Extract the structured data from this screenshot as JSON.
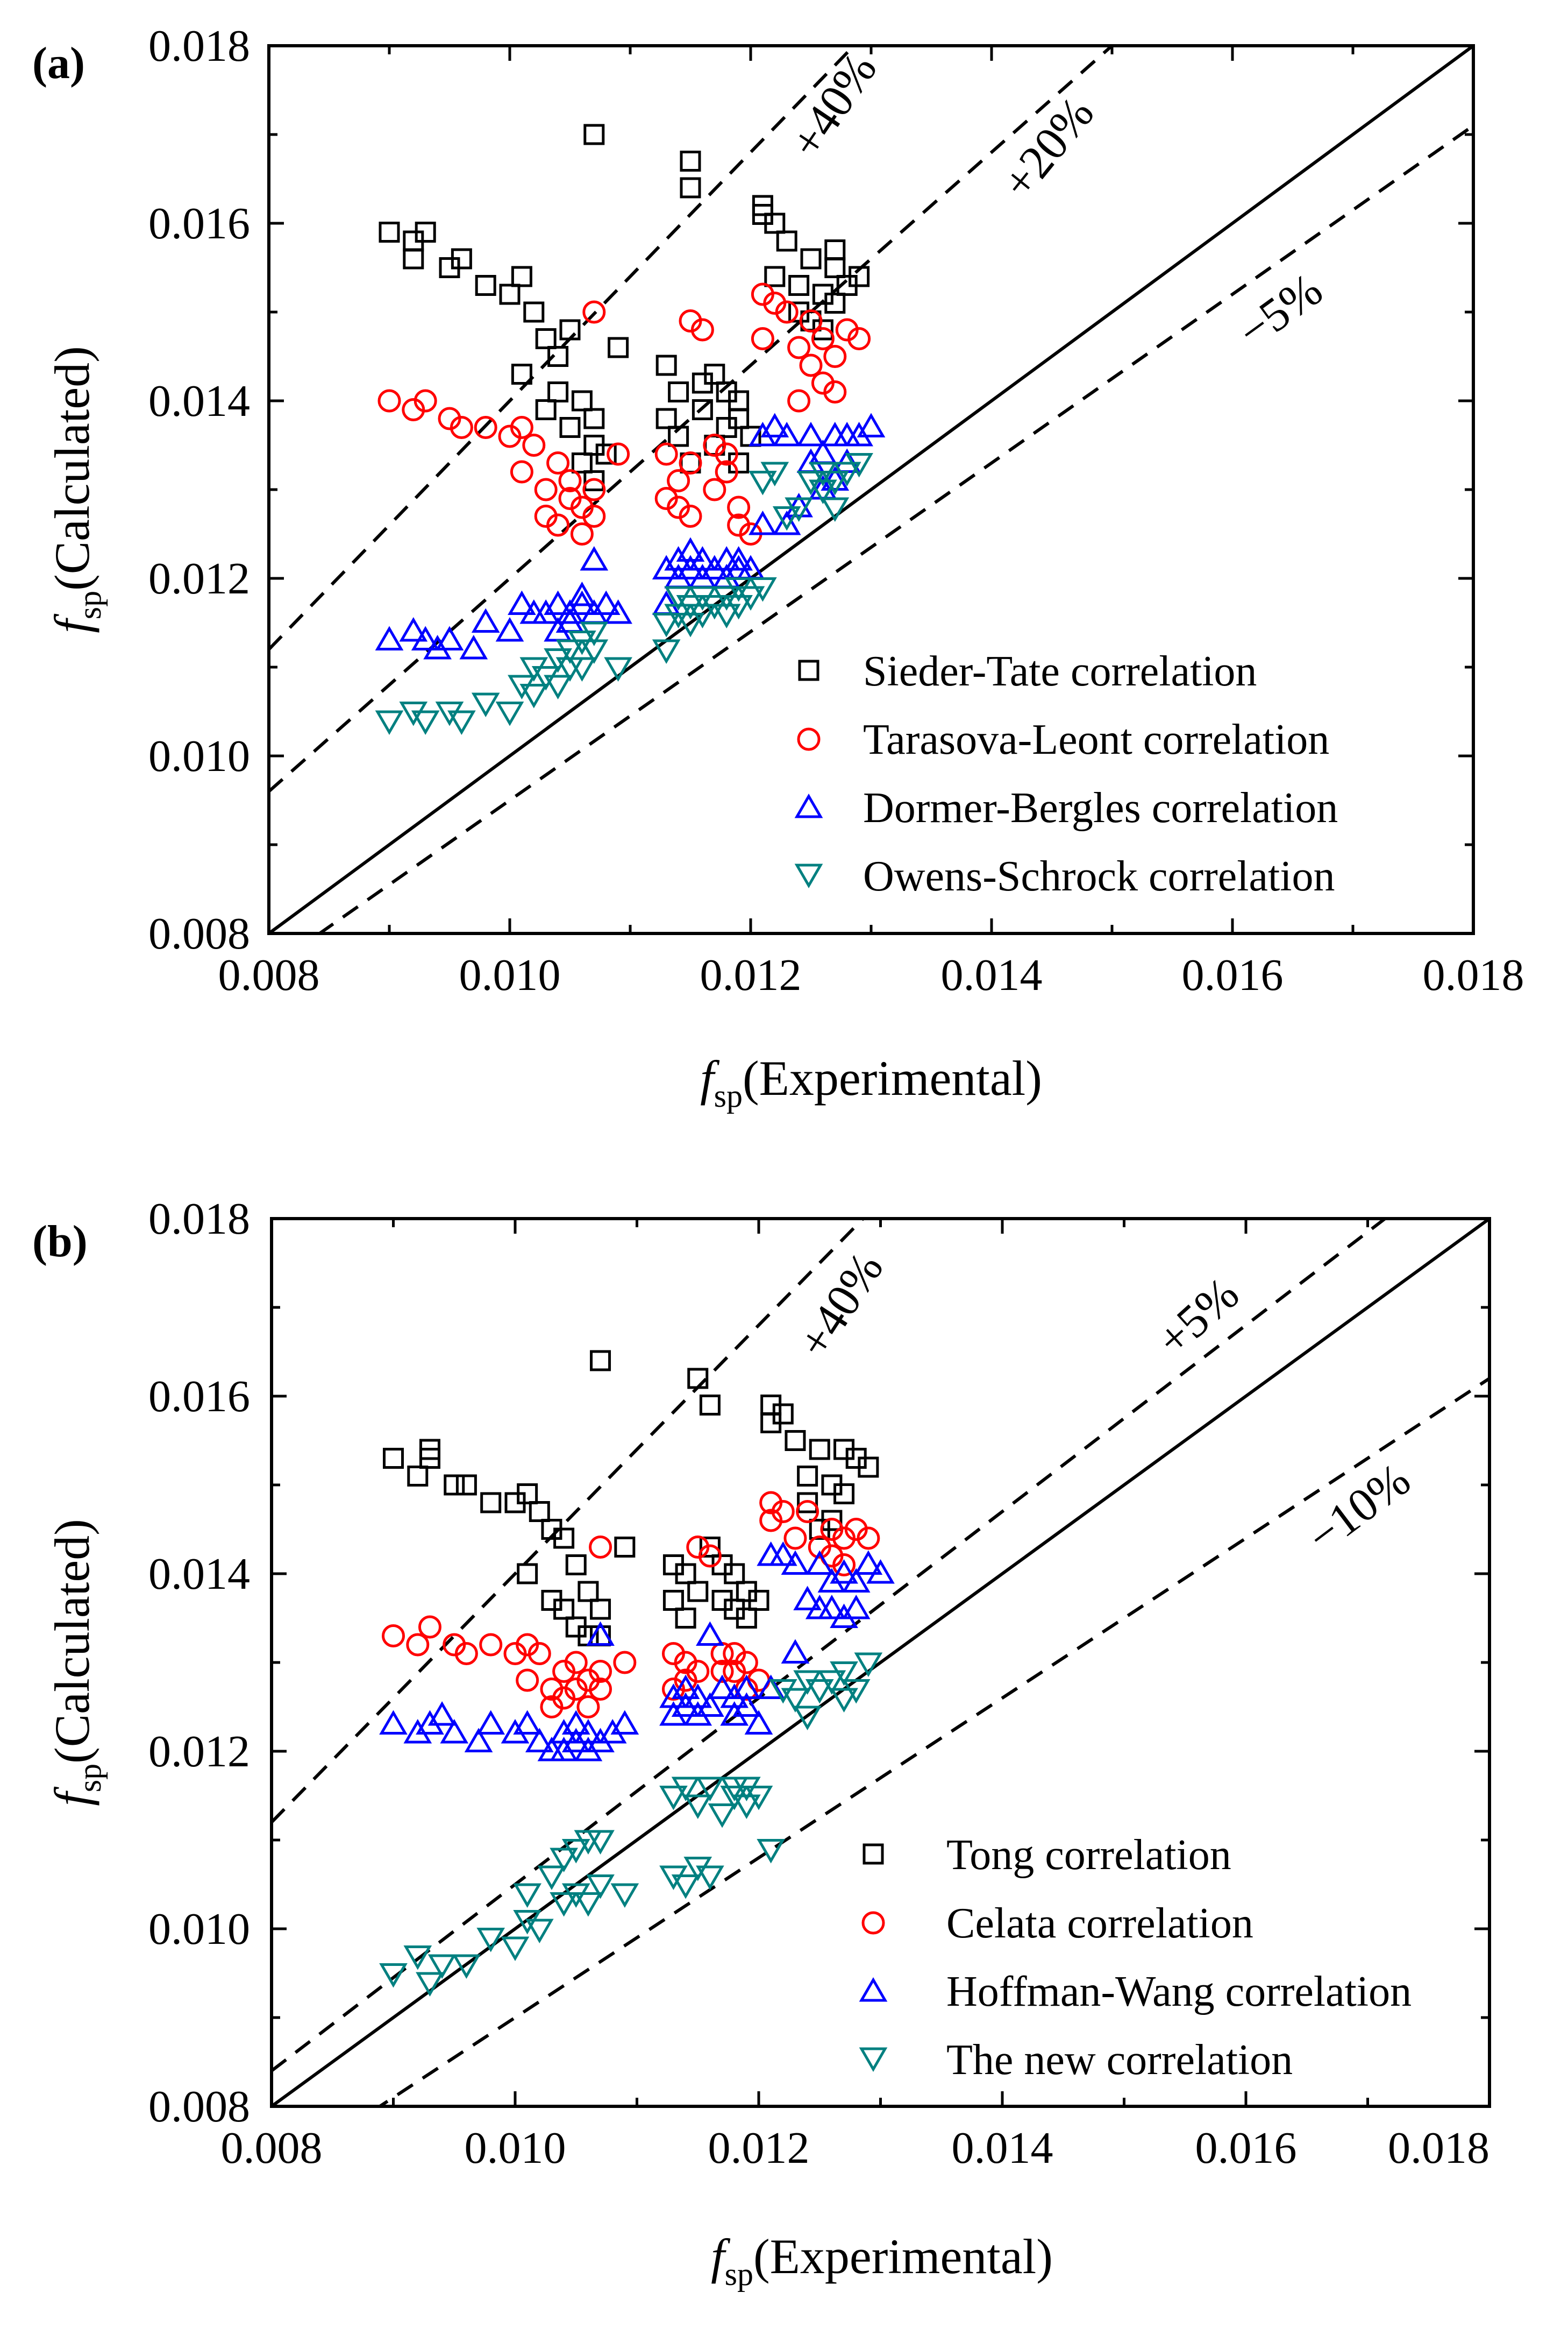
{
  "chart_data": [
    {
      "panel": "(a)",
      "type": "scatter",
      "xlabel": "fsp(Experimental)",
      "ylabel": "fsp(Calculated)",
      "xlabel_main": "f",
      "xlabel_sub": "sp",
      "xlabel_rest": "(Experimental)",
      "ylabel_main": "f",
      "ylabel_sub": "sp",
      "ylabel_rest": "(Calculated)",
      "xlim": [
        0.008,
        0.018
      ],
      "ylim": [
        0.008,
        0.018
      ],
      "xticks": [
        "0.008",
        "0.010",
        "0.012",
        "0.014",
        "0.016",
        "0.018"
      ],
      "yticks": [
        "0.008",
        "0.010",
        "0.012",
        "0.014",
        "0.016",
        "0.018"
      ],
      "legend_position": "bottom-right",
      "reference_lines": [
        {
          "label": "+40%",
          "factor": 1.4
        },
        {
          "label": "+20%",
          "factor": 1.2
        },
        {
          "label": "",
          "factor": 1.0
        },
        {
          "label": "−5%",
          "factor": 0.95
        }
      ],
      "series": [
        {
          "name": "Sieder-Tate correlation",
          "marker": "square",
          "color": "#000000",
          "x": [
            0.009,
            0.0092,
            0.0092,
            0.0093,
            0.0095,
            0.0096,
            0.0098,
            0.01,
            0.0101,
            0.0101,
            0.0102,
            0.0103,
            0.0103,
            0.0104,
            0.0104,
            0.0105,
            0.0105,
            0.0106,
            0.0106,
            0.0107,
            0.0107,
            0.0107,
            0.0108,
            0.0109,
            0.0107,
            0.0113,
            0.0113,
            0.0114,
            0.0114,
            0.0115,
            0.0115,
            0.0115,
            0.0116,
            0.0116,
            0.0117,
            0.0117,
            0.0118,
            0.0118,
            0.0119,
            0.0119,
            0.0119,
            0.012,
            0.0121,
            0.0121,
            0.0122,
            0.0122,
            0.0123,
            0.0124,
            0.0124,
            0.0125,
            0.0126,
            0.0126,
            0.0127,
            0.0127,
            0.0128,
            0.0129,
            0.0127,
            0.0125
          ],
          "y": [
            0.0159,
            0.0156,
            0.0158,
            0.0159,
            0.0155,
            0.0156,
            0.0153,
            0.0152,
            0.0154,
            0.0143,
            0.015,
            0.0147,
            0.0139,
            0.0145,
            0.0141,
            0.0148,
            0.0137,
            0.014,
            0.0133,
            0.0138,
            0.0135,
            0.0131,
            0.0134,
            0.0146,
            0.017,
            0.0144,
            0.0138,
            0.0141,
            0.0136,
            0.0167,
            0.0164,
            0.0133,
            0.0142,
            0.0139,
            0.0143,
            0.0135,
            0.0141,
            0.0137,
            0.014,
            0.0138,
            0.0133,
            0.0136,
            0.0161,
            0.0162,
            0.016,
            0.0154,
            0.0158,
            0.0153,
            0.015,
            0.0156,
            0.0152,
            0.0148,
            0.0157,
            0.0151,
            0.0153,
            0.0154,
            0.0155,
            0.0149
          ]
        },
        {
          "name": "Tarasova-Leont correlation",
          "marker": "circle",
          "color": "#ff0000",
          "x": [
            0.009,
            0.0092,
            0.0093,
            0.0095,
            0.0096,
            0.0098,
            0.01,
            0.0101,
            0.0101,
            0.0102,
            0.0103,
            0.0103,
            0.0104,
            0.0104,
            0.0105,
            0.0105,
            0.0106,
            0.0106,
            0.0107,
            0.0107,
            0.0109,
            0.0107,
            0.0113,
            0.0113,
            0.0114,
            0.0114,
            0.0115,
            0.0115,
            0.0115,
            0.0116,
            0.0117,
            0.0117,
            0.0118,
            0.0118,
            0.0119,
            0.0119,
            0.012,
            0.0121,
            0.0121,
            0.0122,
            0.0123,
            0.0124,
            0.0125,
            0.0125,
            0.0126,
            0.0126,
            0.0127,
            0.0127,
            0.0128,
            0.0129,
            0.0124
          ],
          "y": [
            0.014,
            0.0139,
            0.014,
            0.0138,
            0.0137,
            0.0137,
            0.0136,
            0.0137,
            0.0132,
            0.0135,
            0.013,
            0.0127,
            0.0133,
            0.0126,
            0.0131,
            0.0129,
            0.0128,
            0.0125,
            0.013,
            0.0127,
            0.0134,
            0.015,
            0.0134,
            0.0129,
            0.0131,
            0.0128,
            0.0149,
            0.0133,
            0.0127,
            0.0148,
            0.0135,
            0.013,
            0.0134,
            0.0132,
            0.0128,
            0.0126,
            0.0125,
            0.0152,
            0.0147,
            0.0151,
            0.015,
            0.0146,
            0.0144,
            0.0149,
            0.0142,
            0.0147,
            0.0145,
            0.0141,
            0.0148,
            0.0147,
            0.014
          ]
        },
        {
          "name": "Dormer-Bergles correlation",
          "marker": "triangle-up",
          "color": "#0000ff",
          "x": [
            0.009,
            0.0092,
            0.0093,
            0.0094,
            0.0095,
            0.0097,
            0.0098,
            0.01,
            0.0101,
            0.0102,
            0.0103,
            0.0104,
            0.0104,
            0.0105,
            0.0105,
            0.0106,
            0.0106,
            0.0107,
            0.0107,
            0.0108,
            0.0109,
            0.0113,
            0.0113,
            0.0114,
            0.0114,
            0.0115,
            0.0115,
            0.0116,
            0.0116,
            0.0117,
            0.0118,
            0.0118,
            0.0119,
            0.0119,
            0.012,
            0.0121,
            0.0121,
            0.0122,
            0.0123,
            0.0123,
            0.0124,
            0.0125,
            0.0125,
            0.0126,
            0.0126,
            0.0127,
            0.0127,
            0.0128,
            0.0128,
            0.0129,
            0.013
          ],
          "y": [
            0.0113,
            0.0114,
            0.0113,
            0.0112,
            0.0113,
            0.0112,
            0.0115,
            0.0114,
            0.0117,
            0.0116,
            0.0116,
            0.0114,
            0.0117,
            0.0115,
            0.0116,
            0.0118,
            0.0117,
            0.0122,
            0.0116,
            0.0117,
            0.0116,
            0.0121,
            0.0117,
            0.012,
            0.0122,
            0.0123,
            0.0121,
            0.0122,
            0.012,
            0.0121,
            0.0122,
            0.012,
            0.0121,
            0.0122,
            0.0121,
            0.0136,
            0.0126,
            0.0137,
            0.0126,
            0.0136,
            0.0128,
            0.0133,
            0.0136,
            0.0134,
            0.013,
            0.0136,
            0.0131,
            0.0136,
            0.0133,
            0.0136,
            0.0137
          ]
        },
        {
          "name": "Owens-Schrock correlation",
          "marker": "triangle-down",
          "color": "#008080",
          "x": [
            0.009,
            0.0092,
            0.0093,
            0.0095,
            0.0096,
            0.0098,
            0.01,
            0.0101,
            0.0102,
            0.0102,
            0.0103,
            0.0104,
            0.0104,
            0.0105,
            0.0105,
            0.0106,
            0.0106,
            0.0107,
            0.0107,
            0.0109,
            0.0113,
            0.0113,
            0.0114,
            0.0114,
            0.0115,
            0.0115,
            0.0116,
            0.0116,
            0.0117,
            0.0118,
            0.0118,
            0.0119,
            0.0119,
            0.012,
            0.0121,
            0.0121,
            0.0122,
            0.0123,
            0.0124,
            0.0125,
            0.0126,
            0.0126,
            0.0127,
            0.0127,
            0.0128,
            0.0129
          ],
          "y": [
            0.0104,
            0.0105,
            0.0104,
            0.0105,
            0.0104,
            0.0106,
            0.0105,
            0.0108,
            0.0107,
            0.011,
            0.0109,
            0.0108,
            0.0111,
            0.011,
            0.0112,
            0.011,
            0.0113,
            0.0112,
            0.0114,
            0.011,
            0.0115,
            0.0112,
            0.0116,
            0.0118,
            0.0117,
            0.0115,
            0.0118,
            0.0116,
            0.0117,
            0.0116,
            0.0118,
            0.0117,
            0.0119,
            0.0118,
            0.0119,
            0.0131,
            0.0132,
            0.0127,
            0.0128,
            0.0131,
            0.013,
            0.0132,
            0.0128,
            0.0131,
            0.0132,
            0.0133
          ]
        }
      ]
    },
    {
      "panel": "(b)",
      "type": "scatter",
      "xlabel": "fsp(Experimental)",
      "ylabel": "fsp(Calculated)",
      "xlabel_main": "f",
      "xlabel_sub": "sp",
      "xlabel_rest": "(Experimental)",
      "ylabel_main": "f",
      "ylabel_sub": "sp",
      "ylabel_rest": "(Calculated)",
      "xlim": [
        0.008,
        0.018
      ],
      "ylim": [
        0.008,
        0.018
      ],
      "xticks": [
        "0.008",
        "0.010",
        "0.012",
        "0.014",
        "0.016",
        "0.018"
      ],
      "yticks": [
        "0.008",
        "0.010",
        "0.012",
        "0.014",
        "0.016",
        "0.018"
      ],
      "legend_position": "bottom-right",
      "reference_lines": [
        {
          "label": "+40%",
          "factor": 1.4
        },
        {
          "label": "+5%",
          "factor": 1.05
        },
        {
          "label": "",
          "factor": 1.0
        },
        {
          "label": "−10%",
          "factor": 0.9
        }
      ],
      "series": [
        {
          "name": "Tong correlation",
          "marker": "square",
          "color": "#000000",
          "x": [
            0.009,
            0.0092,
            0.0093,
            0.0093,
            0.0095,
            0.0096,
            0.0098,
            0.01,
            0.0101,
            0.0101,
            0.0102,
            0.0103,
            0.0103,
            0.0104,
            0.0104,
            0.0105,
            0.0105,
            0.0106,
            0.0106,
            0.0107,
            0.0107,
            0.0109,
            0.0107,
            0.0113,
            0.0113,
            0.0114,
            0.0114,
            0.0115,
            0.0115,
            0.0116,
            0.0116,
            0.0117,
            0.0117,
            0.0118,
            0.0118,
            0.0119,
            0.0119,
            0.012,
            0.0121,
            0.0121,
            0.0122,
            0.0123,
            0.0124,
            0.0124,
            0.0125,
            0.0126,
            0.0126,
            0.0127,
            0.0127,
            0.0128,
            0.0129,
            0.0125
          ],
          "y": [
            0.0153,
            0.0151,
            0.0153,
            0.0154,
            0.015,
            0.015,
            0.0148,
            0.0148,
            0.0149,
            0.014,
            0.0147,
            0.0145,
            0.0137,
            0.0144,
            0.0136,
            0.0141,
            0.0134,
            0.0138,
            0.0133,
            0.0136,
            0.0133,
            0.0143,
            0.0164,
            0.0141,
            0.0137,
            0.014,
            0.0135,
            0.0162,
            0.0138,
            0.0159,
            0.0143,
            0.0141,
            0.0137,
            0.014,
            0.0136,
            0.0138,
            0.0135,
            0.0137,
            0.0157,
            0.0159,
            0.0158,
            0.0155,
            0.0151,
            0.0148,
            0.0154,
            0.015,
            0.0146,
            0.0154,
            0.0149,
            0.0153,
            0.0152,
            0.0145
          ]
        },
        {
          "name": "Celata correlation",
          "marker": "circle",
          "color": "#ff0000",
          "x": [
            0.009,
            0.0092,
            0.0093,
            0.0095,
            0.0096,
            0.0098,
            0.01,
            0.0101,
            0.0101,
            0.0102,
            0.0103,
            0.0103,
            0.0104,
            0.0104,
            0.0105,
            0.0105,
            0.0106,
            0.0106,
            0.0107,
            0.0107,
            0.0109,
            0.0107,
            0.0113,
            0.0113,
            0.0114,
            0.0114,
            0.0115,
            0.0115,
            0.0116,
            0.0117,
            0.0117,
            0.0118,
            0.0118,
            0.0119,
            0.0119,
            0.012,
            0.0121,
            0.0121,
            0.0122,
            0.0123,
            0.0124,
            0.0125,
            0.0126,
            0.0126,
            0.0127,
            0.0127,
            0.0128,
            0.0129
          ],
          "y": [
            0.0133,
            0.0132,
            0.0134,
            0.0132,
            0.0131,
            0.0132,
            0.0131,
            0.0132,
            0.0128,
            0.0131,
            0.0127,
            0.0125,
            0.0129,
            0.0126,
            0.013,
            0.0127,
            0.0128,
            0.0125,
            0.0129,
            0.0127,
            0.013,
            0.0143,
            0.0131,
            0.0127,
            0.013,
            0.0128,
            0.0143,
            0.0129,
            0.0142,
            0.0131,
            0.0129,
            0.0131,
            0.0129,
            0.013,
            0.0127,
            0.0128,
            0.0148,
            0.0146,
            0.0147,
            0.0144,
            0.0147,
            0.0143,
            0.0142,
            0.0145,
            0.0141,
            0.0144,
            0.0145,
            0.0144
          ]
        },
        {
          "name": "Hoffman-Wang correlation",
          "marker": "triangle-up",
          "color": "#0000ff",
          "x": [
            0.009,
            0.0092,
            0.0093,
            0.0094,
            0.0095,
            0.0097,
            0.0098,
            0.01,
            0.0101,
            0.0102,
            0.0103,
            0.0104,
            0.0104,
            0.0105,
            0.0105,
            0.0106,
            0.0106,
            0.0107,
            0.0107,
            0.0108,
            0.0109,
            0.0113,
            0.0113,
            0.0114,
            0.0114,
            0.0115,
            0.0115,
            0.0116,
            0.0116,
            0.0117,
            0.0118,
            0.0118,
            0.0119,
            0.0119,
            0.012,
            0.0121,
            0.0121,
            0.0122,
            0.0123,
            0.0123,
            0.0124,
            0.0125,
            0.0125,
            0.0126,
            0.0126,
            0.0127,
            0.0127,
            0.0128,
            0.0128,
            0.0129,
            0.013
          ],
          "y": [
            0.0123,
            0.0122,
            0.0123,
            0.0124,
            0.0122,
            0.0121,
            0.0123,
            0.0122,
            0.0123,
            0.0121,
            0.012,
            0.0122,
            0.012,
            0.0123,
            0.0121,
            0.0122,
            0.012,
            0.0133,
            0.0121,
            0.0122,
            0.0123,
            0.0126,
            0.0124,
            0.0127,
            0.0125,
            0.0126,
            0.0124,
            0.0133,
            0.0125,
            0.0127,
            0.0126,
            0.0124,
            0.0127,
            0.0125,
            0.0123,
            0.0142,
            0.0127,
            0.0142,
            0.0131,
            0.0141,
            0.0137,
            0.0141,
            0.0136,
            0.0139,
            0.0136,
            0.014,
            0.0135,
            0.0139,
            0.0136,
            0.0141,
            0.014
          ]
        },
        {
          "name": "The new correlation",
          "marker": "triangle-down",
          "color": "#008080",
          "x": [
            0.009,
            0.0092,
            0.0093,
            0.0094,
            0.0096,
            0.0098,
            0.01,
            0.0101,
            0.0101,
            0.0102,
            0.0103,
            0.0104,
            0.0104,
            0.0105,
            0.0105,
            0.0106,
            0.0106,
            0.0107,
            0.0107,
            0.0109,
            0.0113,
            0.0113,
            0.0114,
            0.0114,
            0.0115,
            0.0115,
            0.0116,
            0.0116,
            0.0117,
            0.0118,
            0.0118,
            0.0119,
            0.0119,
            0.012,
            0.0121,
            0.0122,
            0.0123,
            0.0124,
            0.0124,
            0.0125,
            0.0126,
            0.0127,
            0.0127,
            0.0128,
            0.0129
          ],
          "y": [
            0.0095,
            0.0097,
            0.0094,
            0.0096,
            0.0096,
            0.0099,
            0.0098,
            0.0101,
            0.0104,
            0.01,
            0.0106,
            0.0103,
            0.0108,
            0.0104,
            0.0109,
            0.0103,
            0.011,
            0.0105,
            0.011,
            0.0104,
            0.0106,
            0.0115,
            0.0105,
            0.0116,
            0.0107,
            0.0114,
            0.0106,
            0.0116,
            0.0113,
            0.0115,
            0.0116,
            0.0114,
            0.0116,
            0.0115,
            0.0109,
            0.0127,
            0.0126,
            0.0128,
            0.0124,
            0.0127,
            0.0128,
            0.0126,
            0.0129,
            0.0127,
            0.013
          ]
        }
      ]
    }
  ]
}
